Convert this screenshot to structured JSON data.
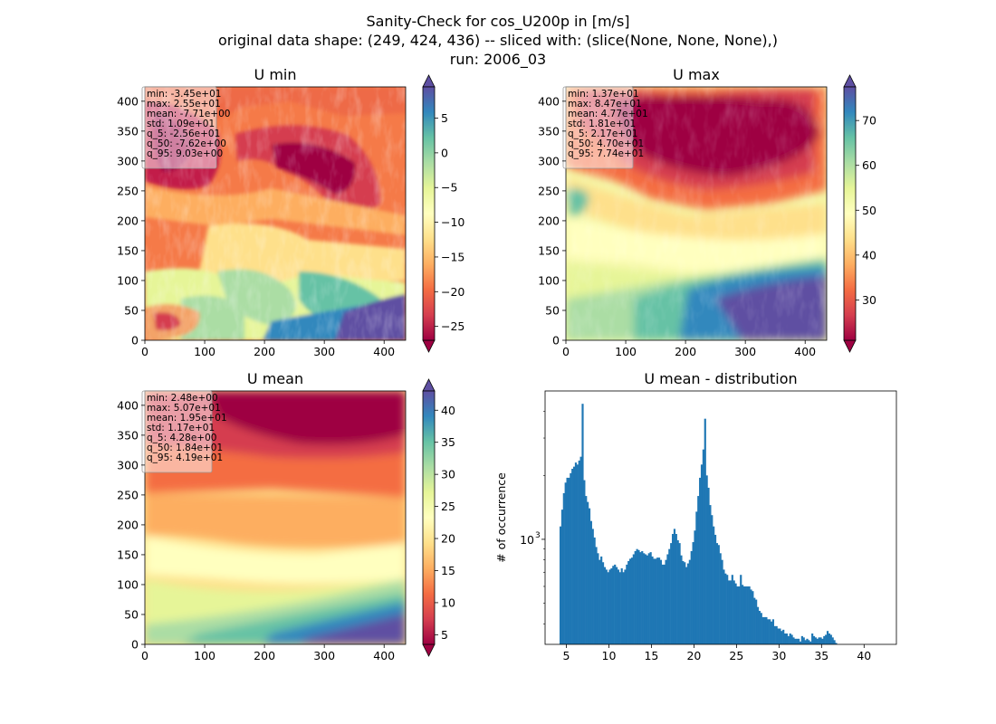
{
  "figure": {
    "title_lines": [
      "Sanity-Check for cos_U200p in [m/s]",
      "original data shape: (249, 424, 436) -- sliced with: (slice(None, None, None),)",
      "run: 2006_03"
    ]
  },
  "colormap": "Spectral",
  "colors": {
    "hist_bar": "#1f77b4",
    "stats_box_bg": "#ffffff",
    "axis": "#000000"
  },
  "chart_data": [
    {
      "type": "heatmap",
      "title": "U min",
      "xlim": [
        0,
        436
      ],
      "ylim": [
        0,
        424
      ],
      "xticks": [
        0,
        100,
        200,
        300,
        400
      ],
      "yticks": [
        0,
        50,
        100,
        150,
        200,
        250,
        300,
        350,
        400
      ],
      "colorbar": {
        "min": -27,
        "max": 9.5,
        "ticks": [
          5,
          0,
          -5,
          -10,
          -15,
          -20,
          -25
        ],
        "extend": "both"
      },
      "stats": [
        "min: -3.45e+01",
        "max: 2.55e+01",
        "mean: -7.71e+00",
        "std: 1.09e+01",
        "q_5: -2.56e+01",
        "q_50: -7.62e+00",
        "q_95: 9.03e+00"
      ]
    },
    {
      "type": "heatmap",
      "title": "U max",
      "xlim": [
        0,
        436
      ],
      "ylim": [
        0,
        424
      ],
      "xticks": [
        0,
        100,
        200,
        300,
        400
      ],
      "yticks": [
        0,
        50,
        100,
        150,
        200,
        250,
        300,
        350,
        400
      ],
      "colorbar": {
        "min": 21,
        "max": 77.5,
        "ticks": [
          70,
          60,
          50,
          40,
          30
        ],
        "extend": "both"
      },
      "stats": [
        "min: 1.37e+01",
        "max: 8.47e+01",
        "mean: 4.77e+01",
        "std: 1.81e+01",
        "q_5: 2.17e+01",
        "q_50: 4.70e+01",
        "q_95: 7.74e+01"
      ]
    },
    {
      "type": "heatmap",
      "title": "U mean",
      "xlim": [
        0,
        436
      ],
      "ylim": [
        0,
        424
      ],
      "xticks": [
        0,
        100,
        200,
        300,
        400
      ],
      "yticks": [
        0,
        50,
        100,
        150,
        200,
        250,
        300,
        350,
        400
      ],
      "colorbar": {
        "min": 3.5,
        "max": 43,
        "ticks": [
          40,
          35,
          30,
          25,
          20,
          15,
          10,
          5
        ],
        "extend": "both"
      },
      "stats": [
        "min: 2.48e+00",
        "max: 5.07e+01",
        "mean: 1.95e+01",
        "std: 1.17e+01",
        "q_5: 4.28e+00",
        "q_50: 1.84e+01",
        "q_95: 4.19e+01"
      ]
    },
    {
      "type": "bar",
      "title": "U mean - distribution",
      "ylabel": "# of occurrence",
      "xlim": [
        2.5,
        43.8
      ],
      "xticks": [
        5,
        10,
        15,
        20,
        25,
        30,
        35,
        40
      ],
      "yscale": "log",
      "ylim": [
        320,
        5000
      ],
      "ytick_label": "10",
      "ytick_exp": "3",
      "bin_start": 4.2,
      "bin_width": 0.2,
      "values": [
        1150,
        1380,
        1650,
        1850,
        1950,
        1950,
        2050,
        2150,
        2200,
        2300,
        2250,
        2350,
        2450,
        4350,
        1900,
        1600,
        1500,
        1400,
        1220,
        1120,
        1020,
        920,
        860,
        800,
        830,
        780,
        740,
        720,
        700,
        720,
        730,
        750,
        760,
        740,
        720,
        700,
        730,
        700,
        720,
        760,
        790,
        810,
        820,
        850,
        880,
        900,
        890,
        870,
        880,
        860,
        850,
        840,
        860,
        870,
        830,
        810,
        810,
        820,
        820,
        800,
        760,
        760,
        800,
        850,
        900,
        960,
        1060,
        1120,
        1060,
        990,
        960,
        840,
        790,
        780,
        740,
        770,
        800,
        880,
        970,
        1100,
        1350,
        1600,
        1950,
        2250,
        2650,
        3700,
        2000,
        1750,
        1450,
        1300,
        1150,
        1050,
        960,
        940,
        860,
        800,
        720,
        690,
        680,
        640,
        640,
        680,
        640,
        620,
        600,
        600,
        680,
        610,
        600,
        600,
        600,
        600,
        580,
        570,
        530,
        520,
        480,
        460,
        450,
        430,
        430,
        430,
        420,
        420,
        410,
        420,
        390,
        390,
        380,
        380,
        370,
        375,
        360,
        360,
        350,
        360,
        355,
        345,
        340,
        340,
        340,
        330,
        350,
        345,
        335,
        340,
        335,
        330,
        360,
        350,
        345,
        340,
        345,
        345,
        340,
        350,
        355,
        370,
        360,
        355,
        345,
        335,
        325,
        310,
        300,
        270,
        240,
        220,
        200
      ]
    }
  ]
}
